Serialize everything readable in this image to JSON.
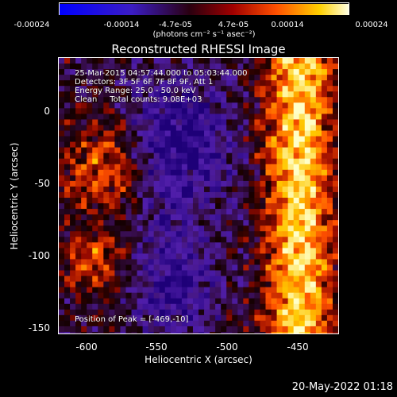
{
  "colorbar": {
    "ticks": [
      "-0.00024",
      "-0.00014",
      "-4.7e-05",
      "4.7e-05",
      "0.00014",
      "0.00024"
    ],
    "units": "(photons cm⁻² s⁻¹ asec⁻²)"
  },
  "title": "Reconstructed RHESSI Image",
  "info": {
    "line1": "25-Mar-2015 04:57:44.000 to 05:03:44.000",
    "line2": "Detectors: 3F 5F 6F 7F 8F 9F, Att 1",
    "line3": "Energy Range: 25.0 - 50.0 keV",
    "line4": "Clean     Total counts: 9.08E+03"
  },
  "peak": "Position of Peak = [-469,-10]",
  "axes": {
    "xlabel": "Heliocentric X (arcsec)",
    "ylabel": "Heliocentric Y (arcsec)",
    "xticks": [
      "-600",
      "-550",
      "-500",
      "-450"
    ],
    "yticks": [
      "0",
      "-50",
      "-100",
      "-150"
    ]
  },
  "timestamp": "20-May-2022 01:18",
  "colors": {
    "background": "#000000",
    "foreground": "#ffffff"
  }
}
